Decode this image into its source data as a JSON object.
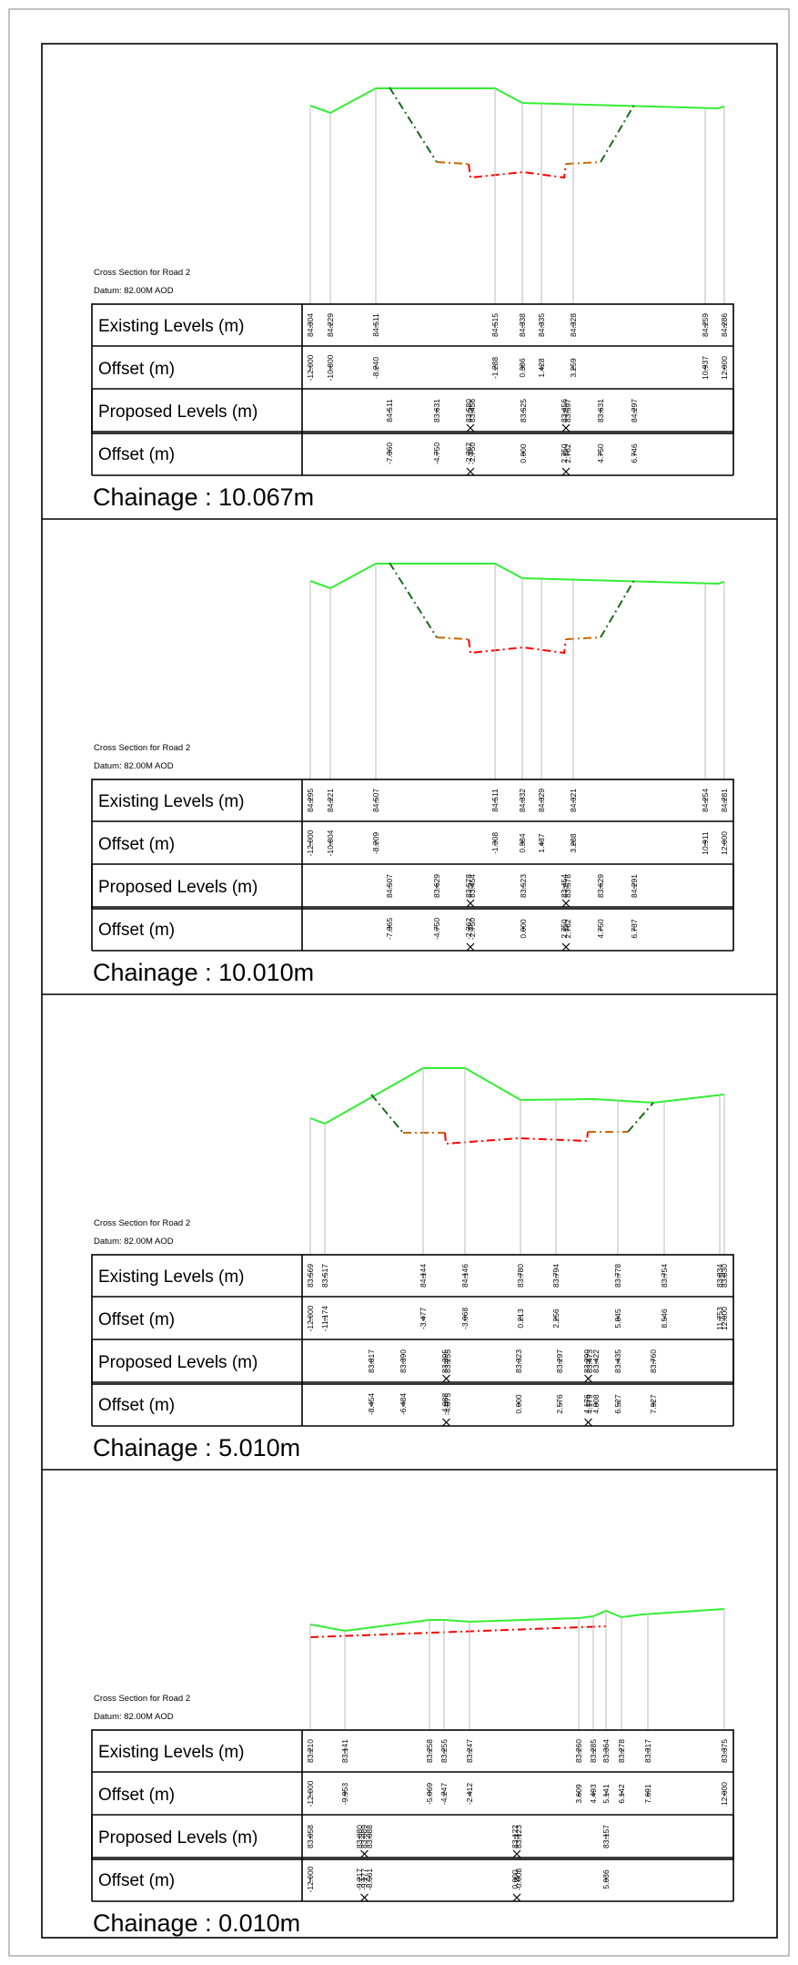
{
  "colors": {
    "existing_ground": "#33ee33",
    "proposed_road": "#ff0000",
    "side_slope": "#1a6b1a",
    "shoulder": "#cc6600",
    "grid": "#bbbbbb",
    "text": "#000000"
  },
  "sections": [
    {
      "title": "Cross Section for Road 2",
      "datum": "Datum: 82.00M AOD",
      "chainage": "Chainage : 10.067m",
      "rows": [
        "Existing Levels (m)",
        "Offset (m)",
        "Proposed Levels (m)",
        "Offset (m)"
      ],
      "existing_offsets": [
        "-12.000",
        "-10.800",
        "-8.240",
        "-1.288",
        "0.386",
        "1.428",
        "3.259",
        "10.937",
        "12.000"
      ],
      "existing_levels": [
        "84.304",
        "84.229",
        "84.511",
        "84.515",
        "84.338",
        "84.335",
        "84.328",
        "84.259",
        "84.286"
      ],
      "proposed_offsets": [
        "-7.360",
        "-4.750",
        "-2.762",
        "-2.750",
        "0.000",
        "2.750",
        "2.762",
        "4.750",
        "6.746"
      ],
      "proposed_levels": [
        "84.511",
        "83.631",
        "83.580",
        "83.456",
        "83.525",
        "83.456",
        "83.597",
        "83.631",
        "84.297"
      ]
    },
    {
      "title": "Cross Section for Road 2",
      "datum": "Datum: 82.00M AOD",
      "chainage": "Chainage : 10.010m",
      "rows": [
        "Existing Levels (m)",
        "Offset (m)",
        "Proposed Levels (m)",
        "Offset (m)"
      ],
      "existing_offsets": [
        "-12.000",
        "-10.804",
        "-8.209",
        "-1.308",
        "0.384",
        "1.437",
        "3.288",
        "10.911",
        "12.000"
      ],
      "existing_levels": [
        "84.295",
        "84.221",
        "84.507",
        "84.511",
        "84.332",
        "84.329",
        "84.321",
        "84.254",
        "84.281"
      ],
      "proposed_offsets": [
        "-7.365",
        "-4.750",
        "-2.762",
        "-2.750",
        "0.000",
        "2.750",
        "2.762",
        "4.750",
        "6.737"
      ],
      "proposed_levels": [
        "84.507",
        "83.629",
        "83.578",
        "83.454",
        "83.523",
        "83.454",
        "83.578",
        "83.629",
        "84.291"
      ]
    },
    {
      "title": "Cross Section for Road 2",
      "datum": "Datum: 82.00M AOD",
      "chainage": "Chainage : 5.010m",
      "rows": [
        "Existing Levels (m)",
        "Offset (m)",
        "Proposed Levels (m)",
        "Offset (m)"
      ],
      "existing_offsets": [
        "-12.000",
        "-11.174",
        "-3.477",
        "-3.068",
        "0.213",
        "2.256",
        "5.845",
        "8.546",
        "11.753",
        "12.000"
      ],
      "existing_levels": [
        "83.569",
        "83.517",
        "84.144",
        "84.146",
        "83.780",
        "83.794",
        "83.778",
        "83.754",
        "83.834",
        "83.830"
      ],
      "proposed_offsets": [
        "-8.454",
        "-6.484",
        "-4.088",
        "-4.075",
        "0.000",
        "2.576",
        "4.176",
        "4.179",
        "4.808",
        "6.527",
        "7.927"
      ],
      "proposed_levels": [
        "83.817",
        "83.390",
        "83.395",
        "83.255",
        "83.323",
        "83.297",
        "83.290",
        "83.473",
        "83.422",
        "83.435",
        "83.760"
      ]
    },
    {
      "title": "Cross Section for Road 2",
      "datum": "Datum: 82.00M AOD",
      "chainage": "Chainage : 0.010m",
      "rows": [
        "Existing Levels (m)",
        "Offset (m)",
        "Proposed Levels (m)",
        "Offset (m)"
      ],
      "existing_offsets": [
        "-12.000",
        "-9.953",
        "-5.069",
        "-4.247",
        "-2.412",
        "3.609",
        "4.493",
        "5.141",
        "6.142",
        "7.691",
        "12.000"
      ],
      "existing_levels": [
        "83.210",
        "83.141",
        "83.258",
        "83.255",
        "83.247",
        "83.260",
        "83.285",
        "83.364",
        "83.278",
        "83.317",
        "83.375"
      ],
      "proposed_offsets": [
        "-12.000",
        "-9.217",
        "-9.177",
        "-8.561",
        "0.000",
        "-0.008",
        "5.036"
      ],
      "proposed_levels": [
        "83.058",
        "83.080",
        "83.089",
        "83.088",
        "83.122",
        "83.123",
        "83.157"
      ]
    }
  ]
}
